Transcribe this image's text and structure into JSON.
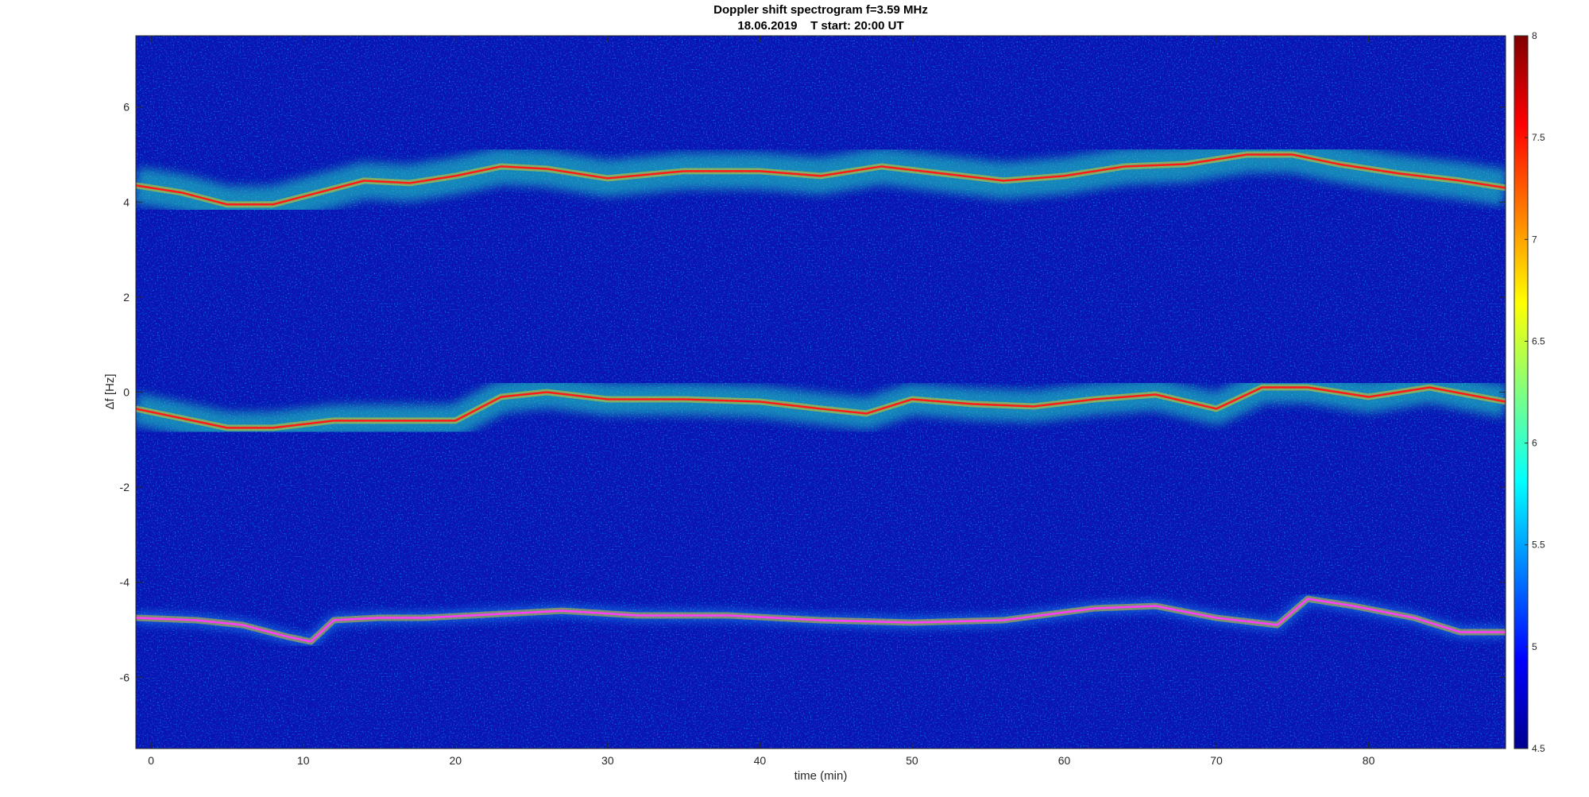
{
  "chart_data": {
    "type": "heatmap",
    "title": "Doppler shift spectrogram f=3.59 MHz",
    "subtitle": "18.06.2019    T start: 20:00 UT",
    "xlabel": "time (min)",
    "ylabel": "Δf [Hz]",
    "xlim": [
      -1,
      89
    ],
    "ylim": [
      -7.5,
      7.5
    ],
    "xticks": [
      0,
      10,
      20,
      30,
      40,
      50,
      60,
      70,
      80
    ],
    "yticks": [
      -6,
      -4,
      -2,
      0,
      2,
      4,
      6
    ],
    "colorbar": {
      "colormap": "jet",
      "clim": [
        4.5,
        8
      ],
      "ticks": [
        4.5,
        5,
        5.5,
        6,
        6.5,
        7,
        7.5,
        8
      ]
    },
    "grid": false,
    "traces": [
      {
        "x": [
          -1,
          2,
          5,
          8,
          11,
          14,
          17,
          20,
          23,
          26,
          30,
          35,
          40,
          44,
          48,
          52,
          56,
          60,
          64,
          68,
          72,
          75,
          78,
          82,
          86,
          89
        ],
        "y": [
          4.35,
          4.2,
          3.95,
          3.95,
          4.2,
          4.45,
          4.4,
          4.55,
          4.75,
          4.7,
          4.5,
          4.65,
          4.65,
          4.55,
          4.75,
          4.6,
          4.45,
          4.55,
          4.75,
          4.8,
          5.0,
          5.0,
          4.8,
          4.6,
          4.45,
          4.3
        ]
      },
      {
        "x": [
          -1,
          2,
          5,
          8,
          12,
          16,
          20,
          23,
          26,
          30,
          35,
          40,
          44,
          47,
          50,
          54,
          58,
          62,
          66,
          70,
          73,
          76,
          80,
          84,
          89
        ],
        "y": [
          -0.35,
          -0.55,
          -0.75,
          -0.75,
          -0.6,
          -0.6,
          -0.6,
          -0.1,
          0.0,
          -0.15,
          -0.15,
          -0.2,
          -0.35,
          -0.45,
          -0.15,
          -0.25,
          -0.3,
          -0.15,
          -0.05,
          -0.35,
          0.1,
          0.1,
          -0.1,
          0.1,
          -0.2
        ]
      },
      {
        "x": [
          -1,
          3,
          6,
          9,
          10.5,
          12,
          15,
          18,
          21,
          24,
          27,
          32,
          38,
          44,
          50,
          56,
          62,
          66,
          70,
          74,
          76,
          79,
          83,
          86,
          89
        ],
        "y": [
          -4.75,
          -4.8,
          -4.9,
          -5.15,
          -5.25,
          -4.8,
          -4.75,
          -4.75,
          -4.7,
          -4.65,
          -4.6,
          -4.7,
          -4.7,
          -4.8,
          -4.85,
          -4.8,
          -4.55,
          -4.5,
          -4.75,
          -4.9,
          -4.35,
          -4.5,
          -4.75,
          -5.05,
          -5.05
        ]
      }
    ]
  }
}
